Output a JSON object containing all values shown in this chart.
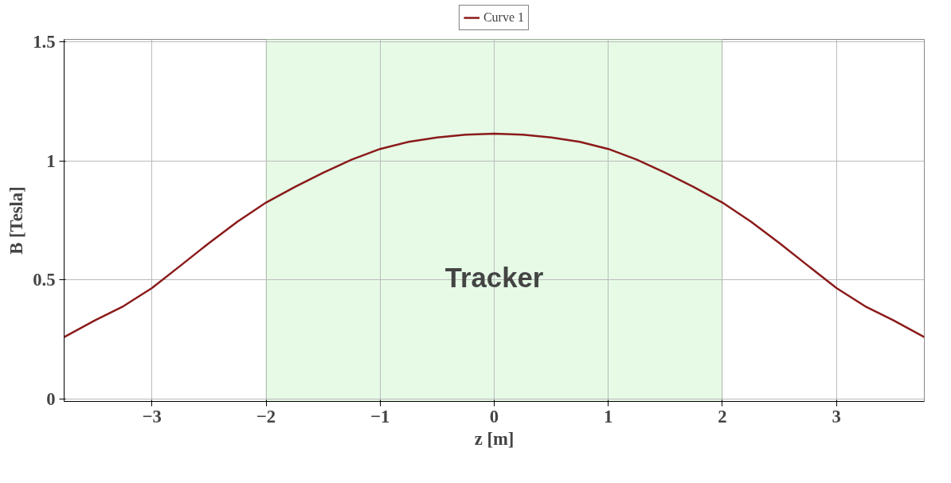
{
  "chart_data": {
    "type": "line",
    "xlabel": "z [m]",
    "ylabel": "B [Tesla]",
    "x": [
      -3.77,
      -3.5,
      -3.25,
      -3,
      -2.75,
      -2.5,
      -2.25,
      -2,
      -1.75,
      -1.5,
      -1.25,
      -1,
      -0.75,
      -0.5,
      -0.25,
      0,
      0.25,
      0.5,
      0.75,
      1,
      1.25,
      1.5,
      1.75,
      2,
      2.25,
      2.5,
      2.75,
      3,
      3.25,
      3.5,
      3.77
    ],
    "series": [
      {
        "name": "Curve 1",
        "color": "#8b1a1a",
        "values": [
          0.26,
          0.33,
          0.39,
          0.466,
          0.56,
          0.655,
          0.745,
          0.825,
          0.89,
          0.95,
          1.005,
          1.05,
          1.08,
          1.098,
          1.11,
          1.114,
          1.11,
          1.098,
          1.08,
          1.05,
          1.005,
          0.95,
          0.89,
          0.825,
          0.745,
          0.655,
          0.56,
          0.466,
          0.39,
          0.33,
          0.26
        ]
      }
    ],
    "xlim": [
      -3.77,
      3.77
    ],
    "ylim": [
      -0.01,
      1.51
    ],
    "xticks": [
      {
        "value": -3,
        "label": "−3"
      },
      {
        "value": -2,
        "label": "−2"
      },
      {
        "value": -1,
        "label": "−1"
      },
      0,
      1,
      2,
      3
    ],
    "yticks": [
      0,
      0.5,
      1,
      1.5
    ],
    "bands": [
      {
        "axis": "x",
        "from": -2,
        "to": 2,
        "label": "Tracker",
        "color": "#d6f7d6"
      }
    ],
    "grid": true,
    "legend": "top",
    "line_style": "solid",
    "marker": "none"
  }
}
